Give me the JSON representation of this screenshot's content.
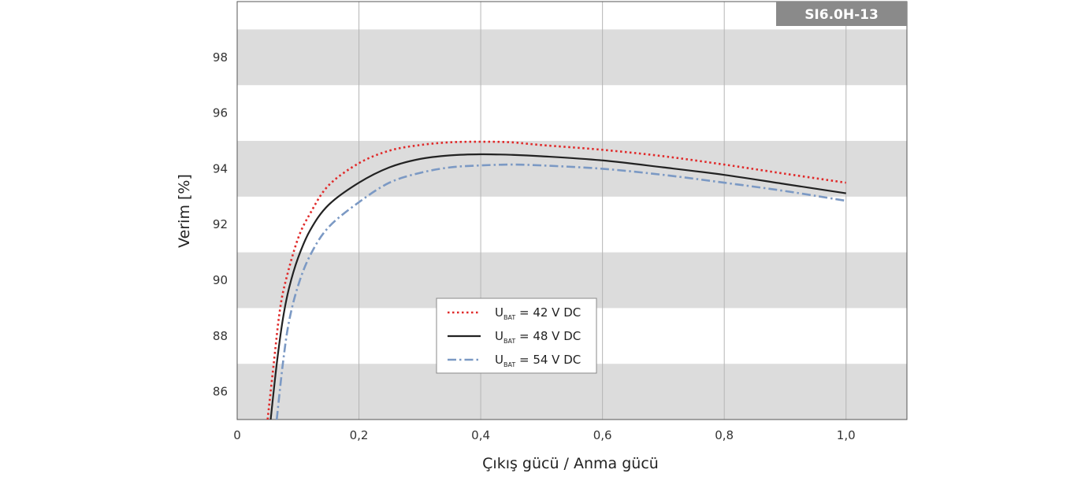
{
  "chart_data": {
    "type": "line",
    "badge": "SI6.0H-13",
    "xlabel": "Çıkış gücü / Anma gücü",
    "ylabel": "Verim [%]",
    "xlim": [
      0,
      1.1
    ],
    "ylim": [
      85,
      100
    ],
    "x_ticks": [
      0,
      0.2,
      0.4,
      0.6,
      0.8,
      1.0
    ],
    "x_tick_labels": [
      "0",
      "0,2",
      "0,4",
      "0,6",
      "0,8",
      "1,0"
    ],
    "y_ticks": [
      86,
      88,
      90,
      92,
      94,
      96,
      98
    ],
    "y_tick_labels": [
      "86",
      "88",
      "90",
      "92",
      "94",
      "96",
      "98"
    ],
    "grid": true,
    "legend_position": "bottom-center",
    "series": [
      {
        "name": "U_BAT = 42 V DC",
        "label_main": "U",
        "label_sub": "BAT",
        "label_rest": " = 42 V DC",
        "color": "#e02a2a",
        "style": "dotted",
        "points": [
          [
            0.05,
            85.0
          ],
          [
            0.06,
            87.0
          ],
          [
            0.07,
            88.9
          ],
          [
            0.08,
            90.0
          ],
          [
            0.1,
            91.5
          ],
          [
            0.12,
            92.4
          ],
          [
            0.15,
            93.4
          ],
          [
            0.2,
            94.2
          ],
          [
            0.25,
            94.65
          ],
          [
            0.3,
            94.85
          ],
          [
            0.35,
            94.95
          ],
          [
            0.4,
            94.97
          ],
          [
            0.45,
            94.95
          ],
          [
            0.5,
            94.85
          ],
          [
            0.6,
            94.68
          ],
          [
            0.7,
            94.45
          ],
          [
            0.8,
            94.15
          ],
          [
            0.9,
            93.82
          ],
          [
            1.0,
            93.5
          ]
        ]
      },
      {
        "name": "U_BAT = 48 V DC",
        "label_main": "U",
        "label_sub": "BAT",
        "label_rest": " = 48 V DC",
        "color": "#222222",
        "style": "solid",
        "points": [
          [
            0.055,
            85.0
          ],
          [
            0.065,
            87.0
          ],
          [
            0.075,
            88.6
          ],
          [
            0.085,
            89.7
          ],
          [
            0.1,
            90.8
          ],
          [
            0.12,
            91.8
          ],
          [
            0.15,
            92.7
          ],
          [
            0.2,
            93.5
          ],
          [
            0.25,
            94.05
          ],
          [
            0.3,
            94.35
          ],
          [
            0.35,
            94.48
          ],
          [
            0.4,
            94.52
          ],
          [
            0.45,
            94.5
          ],
          [
            0.5,
            94.45
          ],
          [
            0.6,
            94.3
          ],
          [
            0.7,
            94.05
          ],
          [
            0.8,
            93.78
          ],
          [
            0.9,
            93.45
          ],
          [
            1.0,
            93.12
          ]
        ]
      },
      {
        "name": "U_BAT = 54 V DC",
        "label_main": "U",
        "label_sub": "BAT",
        "label_rest": " = 54 V DC",
        "color": "#7b99c4",
        "style": "dashdot",
        "points": [
          [
            0.065,
            85.0
          ],
          [
            0.075,
            87.0
          ],
          [
            0.085,
            88.5
          ],
          [
            0.1,
            89.8
          ],
          [
            0.12,
            90.9
          ],
          [
            0.15,
            91.9
          ],
          [
            0.2,
            92.8
          ],
          [
            0.25,
            93.5
          ],
          [
            0.3,
            93.85
          ],
          [
            0.35,
            94.05
          ],
          [
            0.4,
            94.12
          ],
          [
            0.45,
            94.15
          ],
          [
            0.5,
            94.12
          ],
          [
            0.6,
            94.0
          ],
          [
            0.7,
            93.78
          ],
          [
            0.8,
            93.5
          ],
          [
            0.9,
            93.2
          ],
          [
            1.0,
            92.85
          ]
        ]
      }
    ]
  }
}
